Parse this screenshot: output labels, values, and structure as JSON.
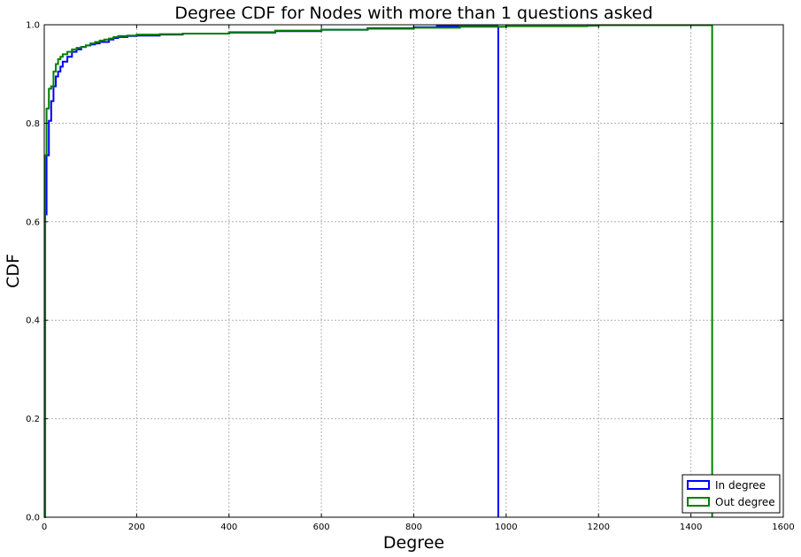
{
  "chart_data": {
    "type": "line",
    "title": "Degree CDF for Nodes with more than 1 questions asked",
    "xlabel": "Degree",
    "ylabel": "CDF",
    "xlim": [
      0,
      1600
    ],
    "ylim": [
      0.0,
      1.0
    ],
    "xticks": [
      "0",
      "200",
      "400",
      "600",
      "800",
      "1000",
      "1200",
      "1400",
      "1600"
    ],
    "yticks": [
      "0.0",
      "0.2",
      "0.4",
      "0.6",
      "0.8",
      "1.0"
    ],
    "grid": true,
    "legend_position": "lower-right",
    "series": [
      {
        "name": "In degree",
        "color": "#0000ff",
        "step": true,
        "x": [
          0,
          2,
          5,
          10,
          15,
          20,
          25,
          30,
          35,
          40,
          50,
          60,
          70,
          80,
          90,
          100,
          110,
          120,
          130,
          140,
          150,
          160,
          180,
          200,
          250,
          300,
          400,
          500,
          600,
          700,
          800,
          850,
          983,
          983
        ],
        "y": [
          0.0,
          0.615,
          0.735,
          0.805,
          0.845,
          0.875,
          0.895,
          0.905,
          0.915,
          0.925,
          0.935,
          0.945,
          0.95,
          0.955,
          0.958,
          0.96,
          0.962,
          0.965,
          0.965,
          0.97,
          0.973,
          0.975,
          0.977,
          0.978,
          0.98,
          0.982,
          0.984,
          0.987,
          0.99,
          0.993,
          0.995,
          0.997,
          0.998,
          0.0
        ]
      },
      {
        "name": "Out degree",
        "color": "#008000",
        "step": true,
        "x": [
          0,
          2,
          5,
          10,
          15,
          20,
          25,
          30,
          35,
          40,
          50,
          60,
          70,
          80,
          90,
          100,
          110,
          120,
          130,
          140,
          150,
          160,
          180,
          200,
          250,
          300,
          400,
          500,
          600,
          700,
          800,
          900,
          1000,
          1100,
          1175,
          1200,
          1446,
          1446
        ],
        "y": [
          0.0,
          0.735,
          0.83,
          0.87,
          0.875,
          0.905,
          0.92,
          0.93,
          0.935,
          0.94,
          0.945,
          0.95,
          0.953,
          0.955,
          0.958,
          0.962,
          0.965,
          0.968,
          0.97,
          0.972,
          0.975,
          0.977,
          0.978,
          0.98,
          0.981,
          0.982,
          0.985,
          0.988,
          0.99,
          0.992,
          0.994,
          0.996,
          0.997,
          0.997,
          0.998,
          0.999,
          1.0,
          0.0
        ]
      }
    ]
  }
}
